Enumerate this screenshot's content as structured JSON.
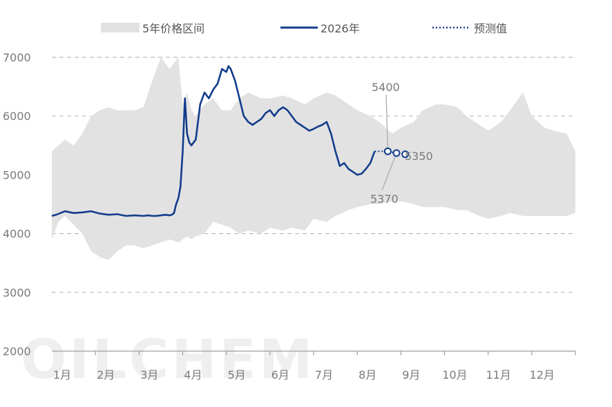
{
  "chart_data": {
    "type": "line",
    "legend": {
      "placement": "top",
      "entries": [
        {
          "key": "band",
          "label": "5年价格区间"
        },
        {
          "key": "line",
          "label": "2026年"
        },
        {
          "key": "forecast",
          "label": "预测值"
        }
      ]
    },
    "colors": {
      "band": "#e2e2e2",
      "line": "#123c8c",
      "forecast": "#123c8c",
      "grid": "#bdbdbd",
      "axis_text": "#7a7a7a"
    },
    "y_axis": {
      "min": 2000,
      "max": 7000,
      "ticks": [
        2000,
        3000,
        4000,
        5000,
        6000,
        7000
      ],
      "grid": true
    },
    "x_axis": {
      "min": 0,
      "max": 12,
      "tick_labels": [
        "1月",
        "2月",
        "3月",
        "4月",
        "5月",
        "6月",
        "7月",
        "8月",
        "9月",
        "10月",
        "11月",
        "12月"
      ]
    },
    "series": [
      {
        "key": "band",
        "name": "5年价格区间",
        "type": "area-range",
        "x": [
          0,
          0.15,
          0.3,
          0.5,
          0.7,
          0.9,
          1.1,
          1.3,
          1.5,
          1.7,
          1.9,
          2.1,
          2.3,
          2.5,
          2.7,
          2.9,
          3.0,
          3.1,
          3.2,
          3.3,
          3.5,
          3.7,
          3.9,
          4.1,
          4.3,
          4.5,
          4.8,
          5.0,
          5.3,
          5.5,
          5.8,
          6.0,
          6.3,
          6.5,
          6.8,
          7.0,
          7.3,
          7.5,
          7.8,
          8.0,
          8.3,
          8.5,
          8.8,
          9.0,
          9.3,
          9.5,
          9.8,
          10.0,
          10.3,
          10.5,
          10.8,
          11.0,
          11.3,
          11.5,
          11.8,
          12.0
        ],
        "high": [
          5400,
          5500,
          5600,
          5500,
          5700,
          6000,
          6100,
          6150,
          6100,
          6100,
          6100,
          6150,
          6600,
          7000,
          6800,
          7000,
          6200,
          6400,
          6100,
          6000,
          6200,
          6300,
          6100,
          6100,
          6300,
          6400,
          6300,
          6300,
          6350,
          6300,
          6200,
          6300,
          6400,
          6350,
          6200,
          6100,
          6000,
          5900,
          5700,
          5800,
          5900,
          6100,
          6200,
          6200,
          6150,
          6000,
          5850,
          5750,
          5900,
          6100,
          6400,
          6000,
          5800,
          5750,
          5700,
          5400
        ],
        "low": [
          3900,
          4200,
          4300,
          4150,
          4000,
          3700,
          3600,
          3550,
          3700,
          3800,
          3800,
          3750,
          3800,
          3850,
          3900,
          3850,
          3900,
          3950,
          3900,
          3950,
          4000,
          4200,
          4150,
          4100,
          4000,
          4050,
          4000,
          4100,
          4050,
          4100,
          4050,
          4250,
          4200,
          4300,
          4400,
          4450,
          4500,
          4500,
          4550,
          4550,
          4500,
          4450,
          4450,
          4450,
          4400,
          4400,
          4300,
          4250,
          4300,
          4350,
          4300,
          4300,
          4300,
          4300,
          4300,
          4350
        ]
      },
      {
        "key": "line",
        "name": "2026年",
        "type": "line",
        "x": [
          0,
          0.1,
          0.2,
          0.3,
          0.5,
          0.7,
          0.9,
          1.1,
          1.3,
          1.5,
          1.7,
          1.9,
          2.1,
          2.2,
          2.3,
          2.4,
          2.5,
          2.6,
          2.7,
          2.75,
          2.8,
          2.85,
          2.9,
          2.95,
          3.0,
          3.05,
          3.1,
          3.15,
          3.2,
          3.3,
          3.4,
          3.5,
          3.6,
          3.7,
          3.8,
          3.9,
          4.0,
          4.05,
          4.1,
          4.2,
          4.3,
          4.4,
          4.5,
          4.6,
          4.7,
          4.8,
          4.9,
          5.0,
          5.1,
          5.2,
          5.3,
          5.4,
          5.5,
          5.6,
          5.7,
          5.8,
          5.9,
          6.0,
          6.1,
          6.2,
          6.3,
          6.4,
          6.5,
          6.6,
          6.7,
          6.8,
          6.9,
          7.0,
          7.1,
          7.2,
          7.3,
          7.4
        ],
        "y": [
          4300,
          4320,
          4350,
          4380,
          4350,
          4360,
          4380,
          4340,
          4320,
          4330,
          4300,
          4310,
          4300,
          4310,
          4300,
          4300,
          4310,
          4320,
          4310,
          4320,
          4350,
          4500,
          4600,
          4800,
          5400,
          6300,
          5700,
          5550,
          5500,
          5600,
          6200,
          6400,
          6300,
          6450,
          6550,
          6800,
          6750,
          6850,
          6800,
          6600,
          6300,
          6000,
          5900,
          5850,
          5900,
          5950,
          6050,
          6100,
          6000,
          6100,
          6150,
          6100,
          6000,
          5900,
          5850,
          5800,
          5750,
          5780,
          5820,
          5850,
          5900,
          5700,
          5400,
          5150,
          5200,
          5100,
          5050,
          5000,
          5020,
          5100,
          5200,
          5400
        ]
      },
      {
        "key": "forecast",
        "name": "预测值",
        "type": "line-dotted",
        "x": [
          7.4,
          7.7,
          7.9,
          8.1
        ],
        "y": [
          5400,
          5400,
          5370,
          5350
        ],
        "markers": [
          {
            "x": 7.7,
            "y": 5400,
            "label": "5400"
          },
          {
            "x": 7.9,
            "y": 5370,
            "label": "5370"
          },
          {
            "x": 8.1,
            "y": 5350,
            "label": "5350"
          }
        ]
      }
    ]
  }
}
